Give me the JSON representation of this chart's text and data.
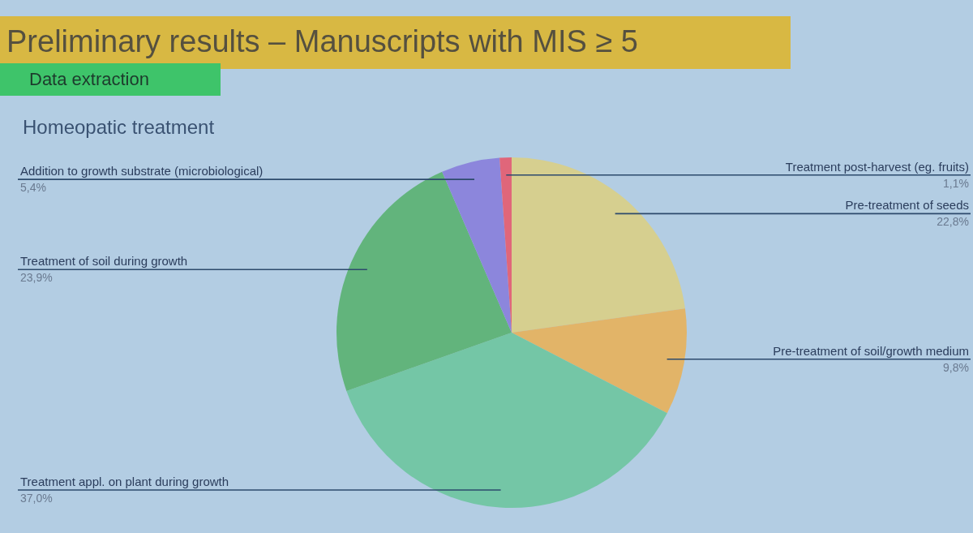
{
  "chart_data": {
    "type": "pie",
    "title": "Preliminary results – Manuscripts with MIS ≥ 5",
    "subtitle": "Homeopatic treatment",
    "annotations": [
      "Data extraction"
    ],
    "categories": [
      "Pre-treatment of seeds",
      "Pre-treatment of soil/growth medium",
      "Treatment appl. on plant during growth",
      "Treatment of soil during growth",
      "Addition to growth substrate (microbiological)",
      "Treatment post-harvest (eg. fruits)"
    ],
    "values": [
      22.8,
      9.8,
      37.0,
      23.9,
      5.4,
      1.1
    ],
    "value_labels": [
      "22,8%",
      "9,8%",
      "37,0%",
      "23,9%",
      "5,4%",
      "1,1%"
    ],
    "colors": [
      "#d6cf8f",
      "#e2b468",
      "#74c6a6",
      "#62b47c",
      "#8c86dc",
      "#e0667a"
    ]
  }
}
